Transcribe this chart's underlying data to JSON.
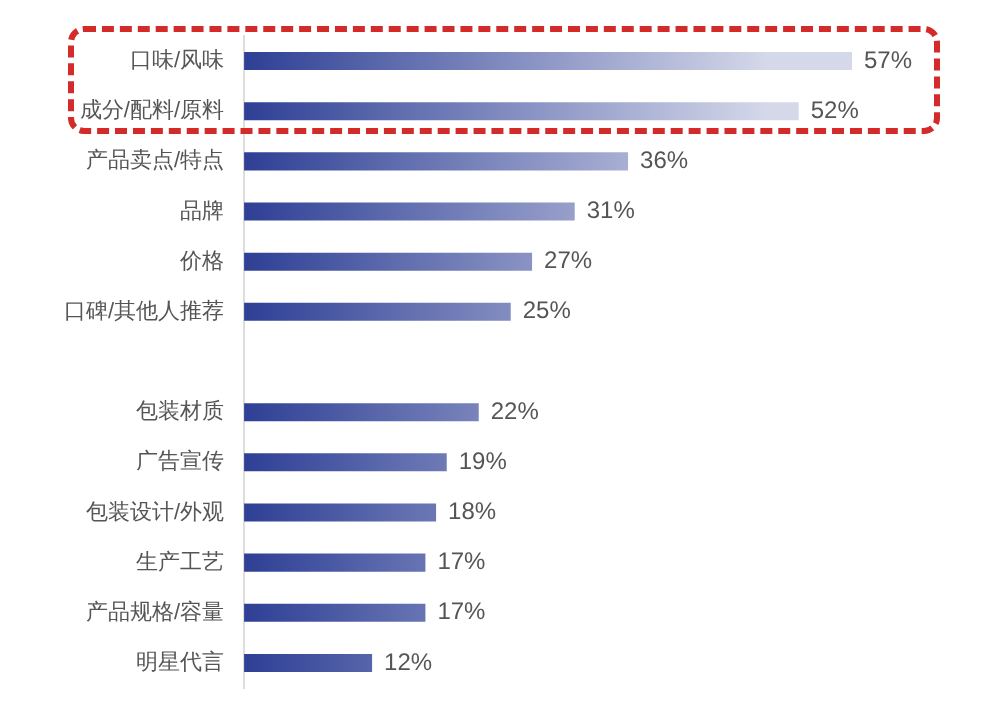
{
  "chart_data": {
    "type": "bar",
    "orientation": "horizontal",
    "categories": [
      "口味/风味",
      "成分/配料/原料",
      "产品卖点/特点",
      "品牌",
      "价格",
      "口碑/其他人推荐",
      null,
      "包装材质",
      "广告宣传",
      "包装设计/外观",
      "生产工艺",
      "产品规格/容量",
      "明星代言"
    ],
    "values": [
      57,
      52,
      36,
      31,
      27,
      25,
      null,
      22,
      19,
      18,
      17,
      17,
      12
    ],
    "value_labels": [
      "57%",
      "52%",
      "36%",
      "31%",
      "27%",
      "25%",
      null,
      "22%",
      "19%",
      "18%",
      "17%",
      "17%",
      "12%"
    ],
    "color": "#2e3f95",
    "tick_labels": "y",
    "legend": false
  }
}
